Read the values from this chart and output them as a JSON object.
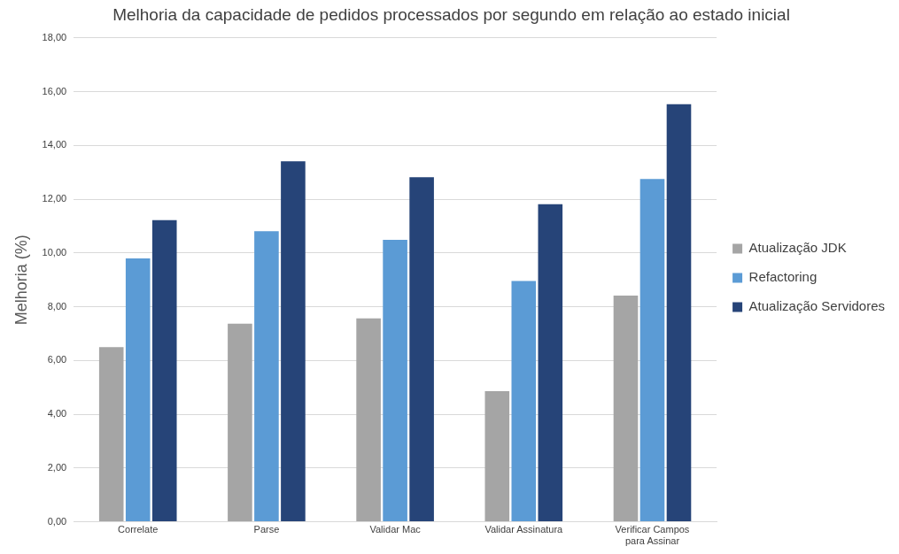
{
  "chart_data": {
    "type": "bar",
    "title": "Melhoria da capacidade de pedidos processados por segundo em relação ao estado inicial",
    "ylabel": "Melhoria (%)",
    "categories": [
      "Correlate",
      "Parse",
      "Validar Mac",
      "Validar Assinatura",
      "Verificar Campos para Assinar"
    ],
    "series": [
      {
        "name": "Atualização JDK",
        "color": "#a5a5a5",
        "values": [
          6.5,
          7.37,
          7.57,
          4.86,
          8.41
        ]
      },
      {
        "name": "Refactoring",
        "color": "#5b9bd5",
        "values": [
          9.8,
          10.81,
          10.49,
          8.96,
          12.75
        ]
      },
      {
        "name": "Atualização Servidores",
        "color": "#264478",
        "values": [
          11.22,
          13.41,
          12.82,
          11.81,
          15.53
        ]
      }
    ],
    "ylim": [
      0,
      18
    ],
    "yticks": [
      {
        "value": 0,
        "label": "0,00"
      },
      {
        "value": 2,
        "label": "2,00"
      },
      {
        "value": 4,
        "label": "4,00"
      },
      {
        "value": 6,
        "label": "6,00"
      },
      {
        "value": 8,
        "label": "8,00"
      },
      {
        "value": 10,
        "label": "10,00"
      },
      {
        "value": 12,
        "label": "12,00"
      },
      {
        "value": 14,
        "label": "14,00"
      },
      {
        "value": 16,
        "label": "16,00"
      },
      {
        "value": 18,
        "label": "18,00"
      }
    ],
    "grid": "y",
    "legend": "right"
  }
}
